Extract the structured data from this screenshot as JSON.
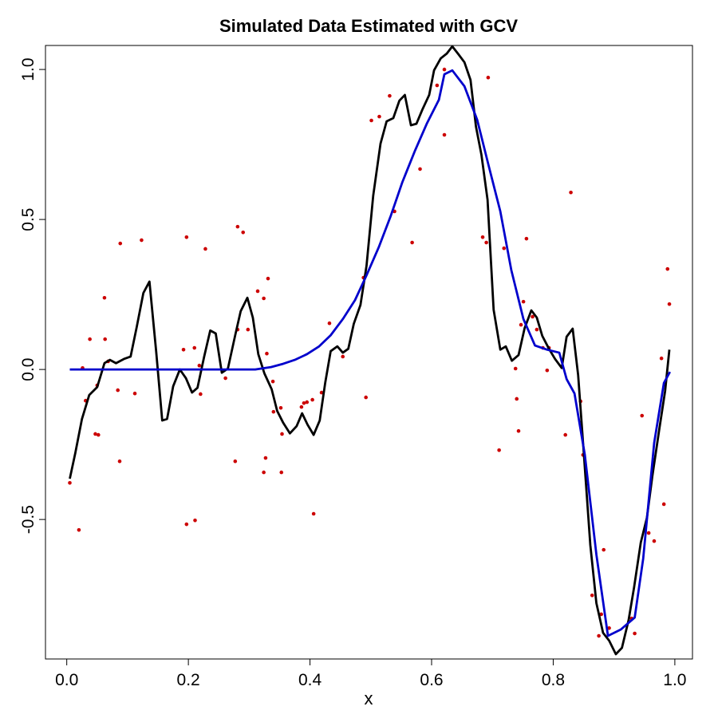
{
  "chart_data": {
    "type": "line",
    "title": "Simulated Data Estimated with GCV",
    "x_label": "x",
    "xlim": [
      -0.035,
      1.029
    ],
    "ylim": [
      -0.965,
      1.08
    ],
    "xticks": [
      {
        "value": 0,
        "label": "0.0"
      },
      0.2,
      0.4,
      0.6,
      0.8,
      {
        "value": 1,
        "label": "1.0"
      }
    ],
    "yticks": [
      -0.5,
      {
        "value": 0,
        "label": "0.0"
      },
      0.5,
      {
        "value": 1,
        "label": "1.0"
      }
    ],
    "series": [
      {
        "type": "scatter",
        "color": "#cc0000",
        "x": [
          0.005,
          0.02,
          0.026,
          0.031,
          0.038,
          0.047,
          0.052,
          0.05,
          0.062,
          0.063,
          0.068,
          0.084,
          0.087,
          0.088,
          0.112,
          0.123,
          0.192,
          0.197,
          0.21,
          0.211,
          0.197,
          0.218,
          0.22,
          0.228,
          0.261,
          0.277,
          0.281,
          0.281,
          0.29,
          0.298,
          0.314,
          0.324,
          0.331,
          0.329,
          0.327,
          0.324,
          0.339,
          0.34,
          0.352,
          0.354,
          0.353,
          0.386,
          0.39,
          0.395,
          0.404,
          0.406,
          0.419,
          0.432,
          0.454,
          0.488,
          0.492,
          0.501,
          0.514,
          0.531,
          0.539,
          0.568,
          0.581,
          0.609,
          0.621,
          0.621,
          0.693,
          0.684,
          0.69,
          0.719,
          0.711,
          0.738,
          0.74,
          0.743,
          0.747,
          0.751,
          0.756,
          0.766,
          0.773,
          0.783,
          0.79,
          0.793,
          0.829,
          0.82,
          0.845,
          0.849,
          0.864,
          0.875,
          0.879,
          0.883,
          0.892,
          0.929,
          0.934,
          0.946,
          0.957,
          0.966,
          0.978,
          0.982,
          0.988,
          0.991
        ],
        "values": [
          -0.378,
          -0.535,
          0.005,
          -0.104,
          0.101,
          -0.215,
          -0.218,
          -0.053,
          0.239,
          0.101,
          0.027,
          -0.069,
          -0.306,
          0.42,
          -0.08,
          0.431,
          0.066,
          0.441,
          0.072,
          -0.503,
          -0.516,
          0.013,
          -0.082,
          0.402,
          -0.029,
          -0.306,
          0.476,
          0.133,
          0.457,
          0.133,
          0.261,
          0.237,
          0.303,
          0.053,
          -0.295,
          -0.343,
          -0.04,
          -0.141,
          -0.128,
          -0.215,
          -0.343,
          -0.125,
          -0.112,
          -0.109,
          -0.101,
          -0.481,
          -0.077,
          0.154,
          0.043,
          0.306,
          -0.093,
          0.83,
          0.843,
          0.912,
          0.527,
          0.423,
          0.668,
          0.947,
          0.782,
          1.0,
          0.973,
          0.441,
          0.423,
          0.404,
          -0.269,
          0.003,
          -0.098,
          -0.205,
          0.149,
          0.226,
          0.436,
          0.176,
          0.133,
          0.072,
          -0.003,
          0.072,
          0.59,
          -0.218,
          -0.106,
          -0.285,
          -0.753,
          -0.888,
          -0.816,
          -0.601,
          -0.862,
          -0.83,
          -0.88,
          -0.154,
          -0.545,
          -0.572,
          0.037,
          -0.449,
          0.335,
          0.218
        ]
      },
      {
        "type": "line",
        "color": "#000000",
        "x": [
          0.005,
          0.014,
          0.025,
          0.037,
          0.05,
          0.062,
          0.071,
          0.081,
          0.094,
          0.105,
          0.115,
          0.126,
          0.136,
          0.147,
          0.157,
          0.165,
          0.175,
          0.186,
          0.196,
          0.206,
          0.215,
          0.226,
          0.236,
          0.245,
          0.255,
          0.265,
          0.277,
          0.286,
          0.297,
          0.306,
          0.315,
          0.325,
          0.337,
          0.346,
          0.356,
          0.367,
          0.378,
          0.387,
          0.396,
          0.406,
          0.416,
          0.425,
          0.434,
          0.445,
          0.454,
          0.463,
          0.472,
          0.483,
          0.493,
          0.504,
          0.516,
          0.526,
          0.537,
          0.547,
          0.556,
          0.566,
          0.575,
          0.585,
          0.596,
          0.604,
          0.615,
          0.625,
          0.634,
          0.644,
          0.654,
          0.664,
          0.673,
          0.682,
          0.692,
          0.702,
          0.713,
          0.722,
          0.732,
          0.743,
          0.753,
          0.764,
          0.773,
          0.782,
          0.793,
          0.803,
          0.814,
          0.822,
          0.832,
          0.841,
          0.85,
          0.861,
          0.871,
          0.882,
          0.892,
          0.903,
          0.913,
          0.924,
          0.933,
          0.944,
          0.954,
          0.963,
          0.974,
          0.984,
          0.991
        ],
        "values": [
          -0.364,
          -0.279,
          -0.165,
          -0.085,
          -0.059,
          0.021,
          0.032,
          0.021,
          0.035,
          0.043,
          0.141,
          0.255,
          0.293,
          0.061,
          -0.17,
          -0.165,
          -0.056,
          0,
          -0.029,
          -0.077,
          -0.061,
          0.043,
          0.13,
          0.12,
          -0.011,
          0.003,
          0.114,
          0.194,
          0.239,
          0.173,
          0.051,
          -0.013,
          -0.066,
          -0.138,
          -0.178,
          -0.213,
          -0.189,
          -0.146,
          -0.184,
          -0.218,
          -0.17,
          -0.045,
          0.061,
          0.077,
          0.056,
          0.069,
          0.152,
          0.215,
          0.346,
          0.58,
          0.753,
          0.827,
          0.838,
          0.896,
          0.915,
          0.814,
          0.819,
          0.867,
          0.915,
          0.997,
          1.037,
          1.053,
          1.077,
          1.051,
          1.024,
          0.965,
          0.809,
          0.715,
          0.566,
          0.199,
          0.066,
          0.077,
          0.029,
          0.048,
          0.138,
          0.197,
          0.173,
          0.112,
          0.069,
          0.035,
          0.005,
          0.109,
          0.136,
          -0.019,
          -0.271,
          -0.585,
          -0.779,
          -0.878,
          -0.904,
          -0.949,
          -0.928,
          -0.835,
          -0.726,
          -0.577,
          -0.495,
          -0.356,
          -0.205,
          -0.072,
          0.066
        ]
      },
      {
        "type": "line",
        "color": "#0000cc",
        "x": [
          0.005,
          0.31,
          0.336,
          0.356,
          0.375,
          0.395,
          0.415,
          0.434,
          0.454,
          0.474,
          0.493,
          0.513,
          0.533,
          0.552,
          0.572,
          0.592,
          0.612,
          0.621,
          0.634,
          0.654,
          0.675,
          0.693,
          0.713,
          0.731,
          0.751,
          0.77,
          0.79,
          0.81,
          0.822,
          0.835,
          0.852,
          0.871,
          0.89,
          0.911,
          0.934,
          0.948,
          0.966,
          0.982,
          0.992
        ],
        "values": [
          0,
          0,
          0.008,
          0.019,
          0.032,
          0.051,
          0.077,
          0.114,
          0.168,
          0.231,
          0.314,
          0.407,
          0.513,
          0.625,
          0.726,
          0.819,
          0.899,
          0.984,
          0.997,
          0.944,
          0.832,
          0.686,
          0.527,
          0.332,
          0.168,
          0.08,
          0.066,
          0.056,
          -0.032,
          -0.08,
          -0.285,
          -0.617,
          -0.888,
          -0.867,
          -0.827,
          -0.63,
          -0.245,
          -0.045,
          -0.008
        ]
      }
    ]
  }
}
